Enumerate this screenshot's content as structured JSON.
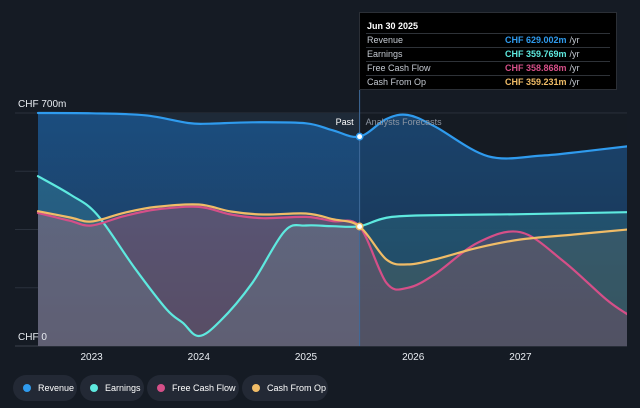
{
  "chart_data": {
    "type": "line",
    "x_labels": [
      "2023",
      "2024",
      "2025",
      "2026",
      "2027"
    ],
    "ylim": [
      0,
      700
    ],
    "y_tick_labels": {
      "top": "CHF 700m",
      "bottom": "CHF 0"
    },
    "divider_labels": {
      "past": "Past",
      "forecast": "Analysts Forecasts"
    },
    "past_until": 2025.5,
    "series": [
      {
        "name": "Revenue",
        "color": "#2f9bee",
        "points": [
          [
            2022.5,
            700
          ],
          [
            2023.0,
            699
          ],
          [
            2023.5,
            693
          ],
          [
            2023.9,
            670
          ],
          [
            2024.1,
            668
          ],
          [
            2024.5,
            672
          ],
          [
            2025.0,
            669
          ],
          [
            2025.25,
            648
          ],
          [
            2025.5,
            629
          ],
          [
            2025.75,
            682
          ],
          [
            2025.95,
            694
          ],
          [
            2026.2,
            660
          ],
          [
            2026.7,
            570
          ],
          [
            2027.2,
            572
          ],
          [
            2027.6,
            585
          ],
          [
            2028.0,
            600
          ]
        ]
      },
      {
        "name": "Earnings",
        "color": "#5ee9df",
        "points": [
          [
            2022.5,
            510
          ],
          [
            2022.8,
            455
          ],
          [
            2023.05,
            395
          ],
          [
            2023.4,
            235
          ],
          [
            2023.7,
            110
          ],
          [
            2023.85,
            70
          ],
          [
            2024.0,
            30
          ],
          [
            2024.2,
            75
          ],
          [
            2024.5,
            190
          ],
          [
            2024.8,
            345
          ],
          [
            2025.0,
            362
          ],
          [
            2025.25,
            360
          ],
          [
            2025.5,
            360
          ],
          [
            2025.8,
            388
          ],
          [
            2026.4,
            394
          ],
          [
            2027.0,
            396
          ],
          [
            2028.0,
            402
          ]
        ]
      },
      {
        "name": "Free Cash Flow",
        "color": "#d54f88",
        "points": [
          [
            2022.5,
            400
          ],
          [
            2022.8,
            376
          ],
          [
            2023.0,
            362
          ],
          [
            2023.3,
            390
          ],
          [
            2023.6,
            410
          ],
          [
            2024.0,
            418
          ],
          [
            2024.3,
            395
          ],
          [
            2024.6,
            384
          ],
          [
            2025.0,
            388
          ],
          [
            2025.25,
            375
          ],
          [
            2025.5,
            359
          ],
          [
            2025.75,
            190
          ],
          [
            2025.95,
            175
          ],
          [
            2026.2,
            215
          ],
          [
            2026.6,
            310
          ],
          [
            2027.0,
            342
          ],
          [
            2027.4,
            255
          ],
          [
            2027.8,
            140
          ],
          [
            2028.0,
            95
          ]
        ]
      },
      {
        "name": "Cash From Op",
        "color": "#f0bc67",
        "points": [
          [
            2022.5,
            405
          ],
          [
            2022.8,
            386
          ],
          [
            2023.0,
            374
          ],
          [
            2023.3,
            400
          ],
          [
            2023.6,
            418
          ],
          [
            2024.0,
            425
          ],
          [
            2024.3,
            404
          ],
          [
            2024.6,
            395
          ],
          [
            2025.0,
            398
          ],
          [
            2025.25,
            381
          ],
          [
            2025.5,
            359
          ],
          [
            2025.75,
            260
          ],
          [
            2025.95,
            245
          ],
          [
            2026.2,
            260
          ],
          [
            2026.6,
            295
          ],
          [
            2027.0,
            320
          ],
          [
            2027.5,
            335
          ],
          [
            2028.0,
            350
          ]
        ]
      }
    ]
  },
  "tooltip": {
    "date": "Jun 30 2025",
    "rows": [
      {
        "label": "Revenue",
        "value": "CHF 629.002m",
        "unit": "/yr",
        "color": "#2f9bee"
      },
      {
        "label": "Earnings",
        "value": "CHF 359.769m",
        "unit": "/yr",
        "color": "#5ee9df"
      },
      {
        "label": "Free Cash Flow",
        "value": "CHF 358.868m",
        "unit": "/yr",
        "color": "#d54f88"
      },
      {
        "label": "Cash From Op",
        "value": "CHF 359.231m",
        "unit": "/yr",
        "color": "#f0bc67"
      }
    ]
  },
  "legend": [
    {
      "label": "Revenue",
      "color": "#2f9bee"
    },
    {
      "label": "Earnings",
      "color": "#5ee9df"
    },
    {
      "label": "Free Cash Flow",
      "color": "#d54f88"
    },
    {
      "label": "Cash From Op",
      "color": "#f0bc67"
    }
  ]
}
